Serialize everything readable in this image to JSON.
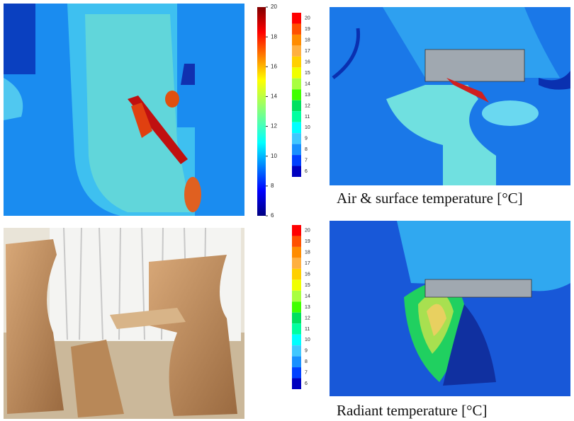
{
  "top_left": {
    "colorbar_ticks": [
      20,
      18,
      16,
      14,
      12,
      10,
      8,
      6
    ]
  },
  "top_right": {
    "colorbar_ticks": [
      20,
      19,
      18,
      17,
      16,
      15,
      14,
      13,
      12,
      11,
      10,
      9,
      8,
      7,
      6
    ],
    "caption": "Air & surface temperature [°C]"
  },
  "bottom_right": {
    "colorbar_ticks": [
      20,
      19,
      18,
      17,
      16,
      15,
      14,
      13,
      12,
      11,
      10,
      9,
      8,
      7,
      6
    ],
    "caption": "Radiant temperature [°C]"
  }
}
